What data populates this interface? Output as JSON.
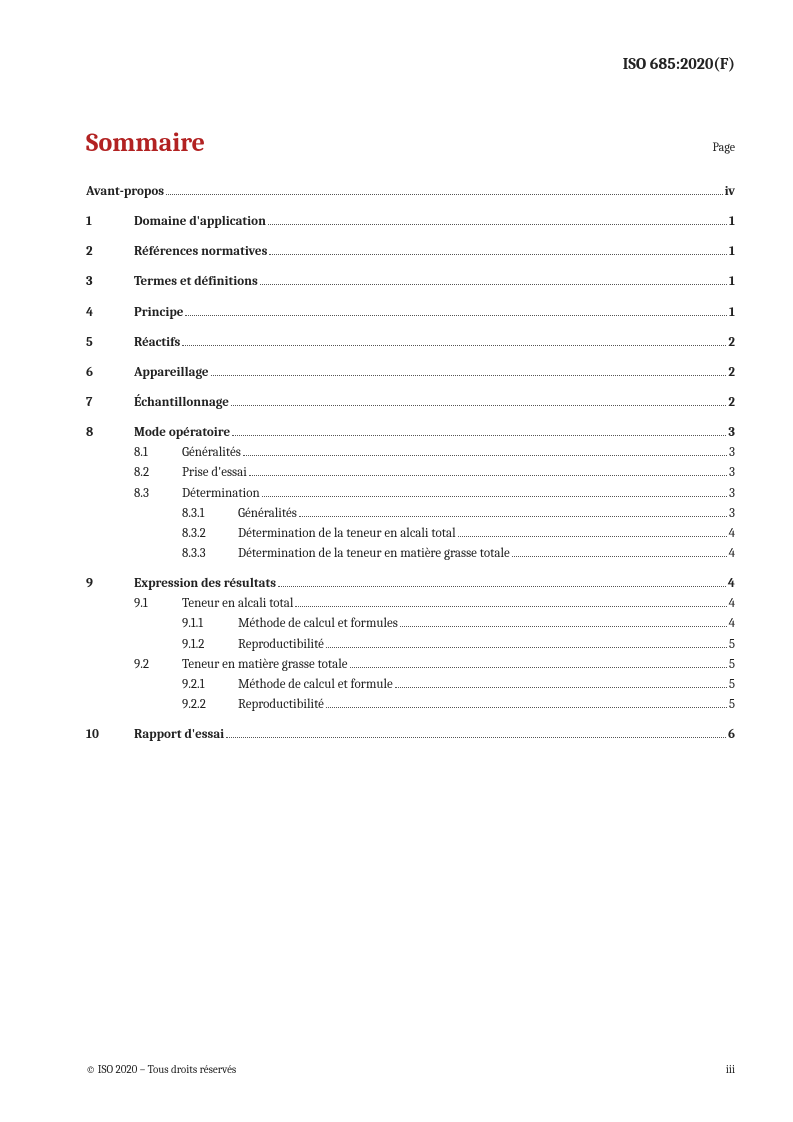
{
  "document_header": "ISO 685:2020(F)",
  "title": "Sommaire",
  "page_label": "Page",
  "footer_left": "© ISO 2020 – Tous droits réservés",
  "footer_right": "iii",
  "toc": [
    {
      "group": [
        {
          "level": 0,
          "bold": true,
          "num": "",
          "label": "Avant-propos",
          "page": "iv"
        }
      ]
    },
    {
      "group": [
        {
          "level": 1,
          "bold": true,
          "num": "1",
          "label": "Domaine d'application",
          "page": "1"
        }
      ]
    },
    {
      "group": [
        {
          "level": 1,
          "bold": true,
          "num": "2",
          "label": "Références normatives",
          "page": "1"
        }
      ]
    },
    {
      "group": [
        {
          "level": 1,
          "bold": true,
          "num": "3",
          "label": "Termes et définitions",
          "page": "1"
        }
      ]
    },
    {
      "group": [
        {
          "level": 1,
          "bold": true,
          "num": "4",
          "label": "Principe",
          "page": "1"
        }
      ]
    },
    {
      "group": [
        {
          "level": 1,
          "bold": true,
          "num": "5",
          "label": "Réactifs",
          "page": "2"
        }
      ]
    },
    {
      "group": [
        {
          "level": 1,
          "bold": true,
          "num": "6",
          "label": "Appareillage",
          "page": "2"
        }
      ]
    },
    {
      "group": [
        {
          "level": 1,
          "bold": true,
          "num": "7",
          "label": "Échantillonnage",
          "page": "2"
        }
      ]
    },
    {
      "group": [
        {
          "level": 1,
          "bold": true,
          "num": "8",
          "label": "Mode opératoire",
          "page": "3"
        },
        {
          "level": 2,
          "bold": false,
          "num": "8.1",
          "label": "Généralités",
          "page": "3"
        },
        {
          "level": 2,
          "bold": false,
          "num": "8.2",
          "label": "Prise d'essai",
          "page": "3"
        },
        {
          "level": 2,
          "bold": false,
          "num": "8.3",
          "label": "Détermination",
          "page": "3"
        },
        {
          "level": 3,
          "bold": false,
          "num": "8.3.1",
          "label": "Généralités",
          "page": "3"
        },
        {
          "level": 3,
          "bold": false,
          "num": "8.3.2",
          "label": "Détermination de la teneur en alcali total",
          "page": "4"
        },
        {
          "level": 3,
          "bold": false,
          "num": "8.3.3",
          "label": "Détermination de la teneur en matière grasse totale",
          "page": "4"
        }
      ]
    },
    {
      "group": [
        {
          "level": 1,
          "bold": true,
          "num": "9",
          "label": "Expression des résultats",
          "page": "4"
        },
        {
          "level": 2,
          "bold": false,
          "num": "9.1",
          "label": "Teneur en alcali total",
          "page": "4"
        },
        {
          "level": 3,
          "bold": false,
          "num": "9.1.1",
          "label": "Méthode de calcul et formules",
          "page": "4"
        },
        {
          "level": 3,
          "bold": false,
          "num": "9.1.2",
          "label": "Reproductibilité",
          "page": "5"
        },
        {
          "level": 2,
          "bold": false,
          "num": "9.2",
          "label": "Teneur en matière grasse totale",
          "page": "5"
        },
        {
          "level": 3,
          "bold": false,
          "num": "9.2.1",
          "label": "Méthode de calcul et formule",
          "page": "5"
        },
        {
          "level": 3,
          "bold": false,
          "num": "9.2.2",
          "label": "Reproductibilité",
          "page": "5"
        }
      ]
    },
    {
      "group": [
        {
          "level": 1,
          "bold": true,
          "num": "10",
          "label": "Rapport d'essai",
          "page": "6"
        }
      ]
    }
  ]
}
